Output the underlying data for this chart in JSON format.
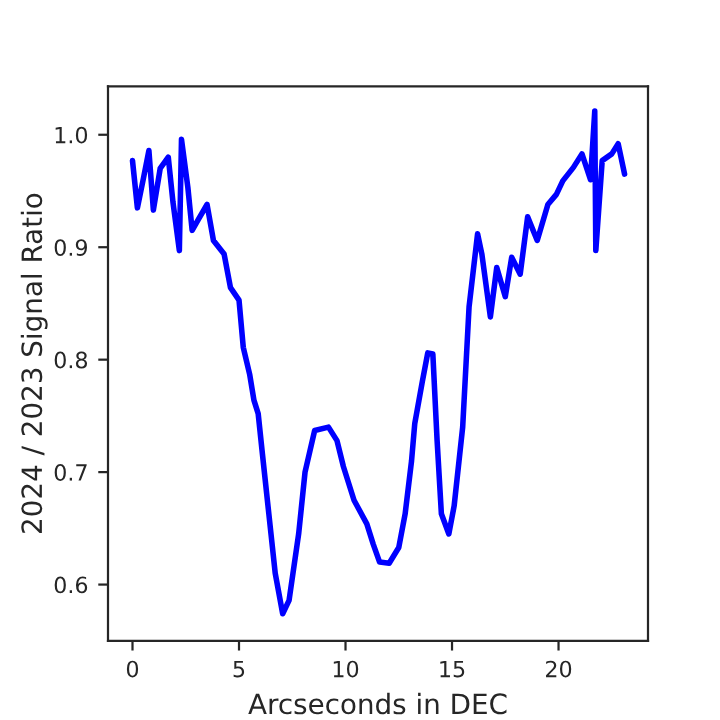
{
  "chart_data": {
    "type": "line",
    "xlabel": "Arcseconds in DEC",
    "ylabel": "2024 / 2023 Signal Ratio",
    "xlim": [
      -1.15,
      24.2
    ],
    "ylim": [
      0.55,
      1.043
    ],
    "xticks": [
      0,
      5,
      10,
      15,
      20
    ],
    "yticks": [
      0.6,
      0.7,
      0.8,
      0.9,
      {
        "value": 1.0,
        "label": "1.0"
      }
    ],
    "grid": false,
    "line_style": "solid",
    "series": [
      {
        "color": "#0000ff",
        "x": [
          0.0,
          0.23,
          0.5,
          0.77,
          0.98,
          1.3,
          1.68,
          1.9,
          2.2,
          2.3,
          2.6,
          2.8,
          3.1,
          3.5,
          3.8,
          4.3,
          4.6,
          5.0,
          5.2,
          5.5,
          5.7,
          5.9,
          6.1,
          6.4,
          6.7,
          7.05,
          7.35,
          7.8,
          8.1,
          8.55,
          9.2,
          9.6,
          9.9,
          10.4,
          11.0,
          11.3,
          11.6,
          12.05,
          12.5,
          12.8,
          13.1,
          13.25,
          13.6,
          13.86,
          14.1,
          14.3,
          14.5,
          14.85,
          15.1,
          15.5,
          15.8,
          16.2,
          16.4,
          16.8,
          17.1,
          17.5,
          17.8,
          18.2,
          18.55,
          19.0,
          19.5,
          19.9,
          20.2,
          20.7,
          21.1,
          21.5,
          21.7,
          21.75,
          22.05,
          22.5,
          22.8,
          23.1
        ],
        "values": [
          0.977,
          0.935,
          0.96,
          0.986,
          0.933,
          0.97,
          0.98,
          0.94,
          0.897,
          0.996,
          0.953,
          0.915,
          0.925,
          0.938,
          0.906,
          0.894,
          0.864,
          0.853,
          0.811,
          0.787,
          0.764,
          0.752,
          0.716,
          0.663,
          0.61,
          0.574,
          0.586,
          0.645,
          0.7,
          0.737,
          0.74,
          0.728,
          0.705,
          0.675,
          0.654,
          0.636,
          0.62,
          0.619,
          0.633,
          0.663,
          0.71,
          0.743,
          0.78,
          0.806,
          0.805,
          0.728,
          0.663,
          0.645,
          0.67,
          0.74,
          0.847,
          0.912,
          0.894,
          0.838,
          0.882,
          0.856,
          0.891,
          0.876,
          0.927,
          0.906,
          0.938,
          0.947,
          0.959,
          0.971,
          0.983,
          0.96,
          1.021,
          0.897,
          0.977,
          0.983,
          0.992,
          0.965
        ]
      }
    ]
  }
}
